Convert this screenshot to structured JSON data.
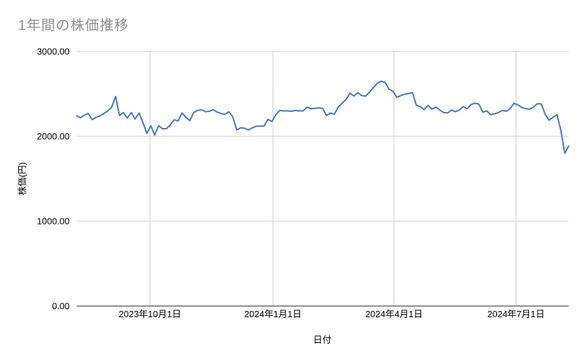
{
  "chart": {
    "title": "1年間の株価推移",
    "x_axis_title": "日付",
    "y_axis_title": "株価(円)"
  },
  "colors": {
    "line": "#4478c8",
    "grid": "#cccccc",
    "axis_line": "#222222",
    "title_text": "#8f8f8f",
    "tick_text": "#000000",
    "background": "#ffffff"
  },
  "chart_data": {
    "type": "line",
    "title": "1年間の株価推移",
    "xlabel": "日付",
    "ylabel": "株価(円)",
    "ylim": [
      0,
      3000
    ],
    "grid": true,
    "legend": false,
    "y_ticks": [
      {
        "value": 0,
        "label": "0.00"
      },
      {
        "value": 1000,
        "label": "1000.00"
      },
      {
        "value": 2000,
        "label": "2000.00"
      },
      {
        "value": 3000,
        "label": "3000.00"
      }
    ],
    "x_ticks": [
      {
        "t": 0.149,
        "label": "2023年10月1日"
      },
      {
        "t": 0.399,
        "label": "2024年1月1日"
      },
      {
        "t": 0.645,
        "label": "2024年4月1日"
      },
      {
        "t": 0.893,
        "label": "2024年7月1日"
      }
    ],
    "series": [
      {
        "name": "株価",
        "color": "#4478c8",
        "x_note": "127 samples evenly spaced across the one-year x range (t = 0 to 1)",
        "values": [
          2240,
          2220,
          2250,
          2270,
          2195,
          2225,
          2240,
          2270,
          2300,
          2345,
          2470,
          2245,
          2280,
          2215,
          2280,
          2205,
          2275,
          2160,
          2035,
          2125,
          2015,
          2125,
          2090,
          2090,
          2135,
          2195,
          2180,
          2275,
          2225,
          2185,
          2280,
          2305,
          2315,
          2290,
          2295,
          2315,
          2285,
          2270,
          2260,
          2290,
          2230,
          2075,
          2100,
          2095,
          2075,
          2100,
          2120,
          2120,
          2120,
          2200,
          2175,
          2255,
          2305,
          2300,
          2300,
          2295,
          2305,
          2300,
          2300,
          2345,
          2325,
          2330,
          2335,
          2330,
          2245,
          2275,
          2260,
          2345,
          2390,
          2435,
          2510,
          2475,
          2515,
          2480,
          2475,
          2520,
          2575,
          2625,
          2650,
          2635,
          2555,
          2530,
          2460,
          2480,
          2495,
          2505,
          2515,
          2365,
          2350,
          2315,
          2365,
          2320,
          2345,
          2310,
          2280,
          2275,
          2310,
          2290,
          2310,
          2350,
          2325,
          2375,
          2390,
          2380,
          2285,
          2300,
          2255,
          2265,
          2280,
          2305,
          2295,
          2325,
          2390,
          2370,
          2340,
          2325,
          2320,
          2345,
          2385,
          2380,
          2260,
          2190,
          2225,
          2255,
          2070,
          1800,
          1885
        ]
      }
    ]
  }
}
